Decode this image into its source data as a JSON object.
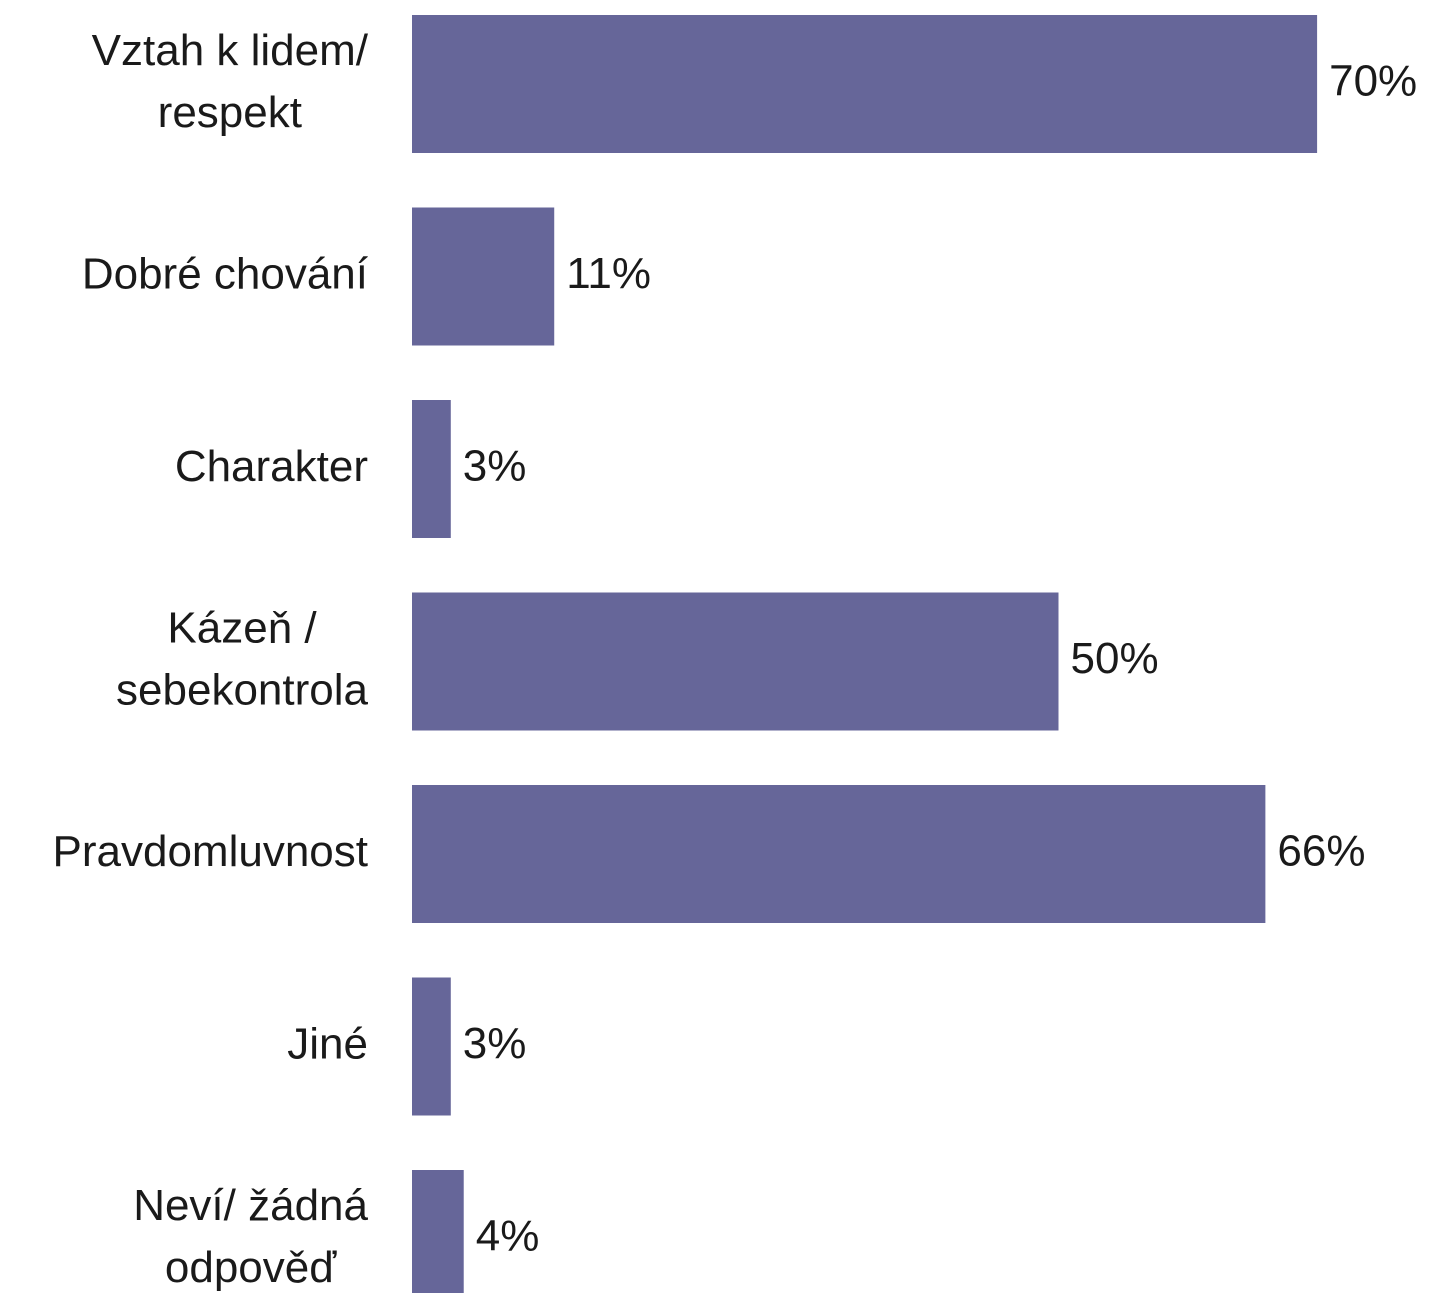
{
  "chart_data": {
    "type": "bar",
    "orientation": "horizontal",
    "categories": [
      "Vztah k lidem/ respekt",
      "Dobré chování",
      "Charakter",
      "Kázeň / sebekontrola",
      "Pravdomluvnost",
      "Jiné",
      "Neví/ žádná odpověď"
    ],
    "values": [
      70,
      11,
      3,
      50,
      66,
      3,
      4
    ],
    "value_labels": [
      "70%",
      "11%",
      "3%",
      "50%",
      "66%",
      "3%",
      "4%"
    ],
    "color": "#666699"
  }
}
